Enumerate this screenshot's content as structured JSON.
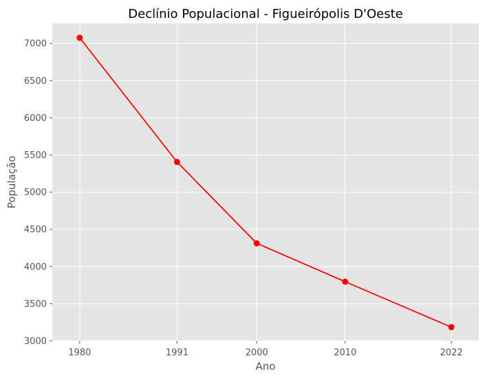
{
  "chart_data": {
    "type": "line",
    "title": "Declínio Populacional - Figueirópolis D'Oeste",
    "xlabel": "Ano",
    "ylabel": "População",
    "x": [
      1980,
      1991,
      2000,
      2010,
      2022
    ],
    "x_ticks": [
      "1980",
      "1991",
      "2000",
      "2010",
      "2022"
    ],
    "y_ticks": [
      3000,
      3500,
      4000,
      4500,
      5000,
      5500,
      6000,
      6500,
      7000
    ],
    "ylim": [
      3000,
      7270
    ],
    "xlim": [
      1976.9,
      2025.1
    ],
    "series": [
      {
        "values": [
          7076,
          5406,
          4313,
          3796,
          3185
        ],
        "color": "#ff0000"
      }
    ],
    "grid": true,
    "background_color": "#e5e5e5",
    "grid_color": "#ffffff"
  }
}
